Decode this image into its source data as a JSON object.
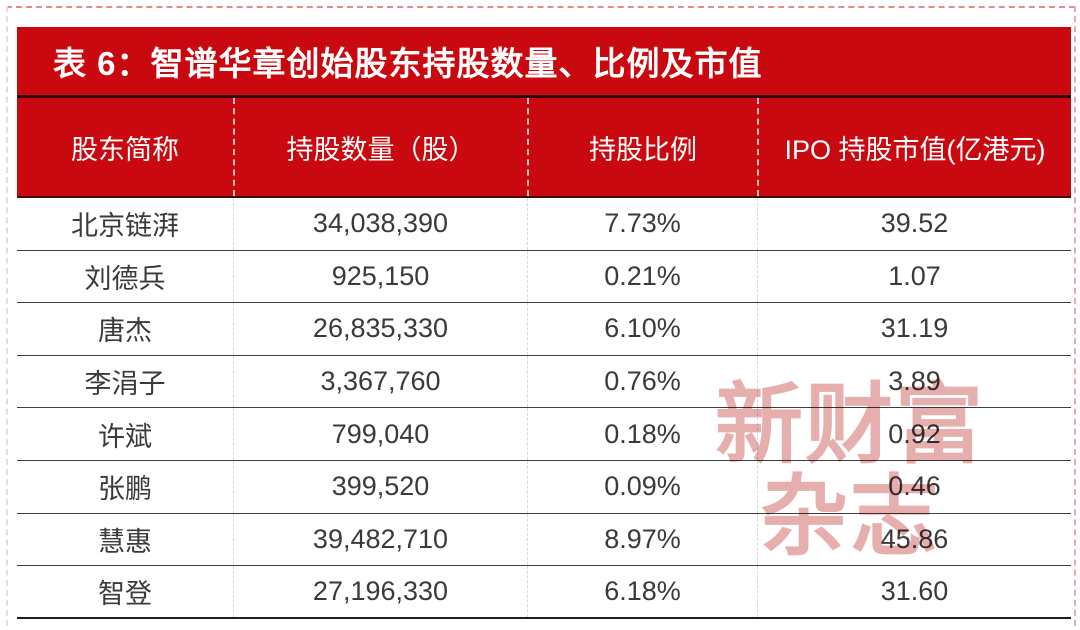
{
  "title": "表 6：智谱华章创始股东持股数量、比例及市值",
  "table": {
    "columns": {
      "shareholder": "股东简称",
      "shares": "持股数量（股）",
      "ratio": "持股比例",
      "market_value": "IPO 持股市值(亿港元)"
    },
    "rows": [
      {
        "name": "北京链湃",
        "shares": "34,038,390",
        "ratio": "7.73%",
        "market_value": "39.52"
      },
      {
        "name": "刘德兵",
        "shares": "925,150",
        "ratio": "0.21%",
        "market_value": "1.07"
      },
      {
        "name": "唐杰",
        "shares": "26,835,330",
        "ratio": "6.10%",
        "market_value": "31.19"
      },
      {
        "name": "李涓子",
        "shares": "3,367,760",
        "ratio": "0.76%",
        "market_value": "3.89"
      },
      {
        "name": "许斌",
        "shares": "799,040",
        "ratio": "0.18%",
        "market_value": "0.92"
      },
      {
        "name": "张鹏",
        "shares": "399,520",
        "ratio": "0.09%",
        "market_value": "0.46"
      },
      {
        "name": "慧惠",
        "shares": "39,482,710",
        "ratio": "8.97%",
        "market_value": "45.86"
      },
      {
        "name": "智登",
        "shares": "27,196,330",
        "ratio": "6.18%",
        "market_value": "31.60"
      }
    ]
  },
  "watermark": {
    "line1": "新财富",
    "line2": "杂志"
  },
  "colors": {
    "accent_red": "#c9090f",
    "header_text": "#ffffff",
    "body_text": "#3a3a3a",
    "watermark_pink": "#d97c7c"
  }
}
